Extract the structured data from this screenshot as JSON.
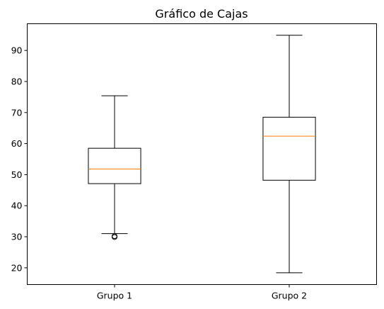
{
  "chart_data": {
    "type": "box",
    "title": "Gráfico de Cajas",
    "xlabel": "",
    "ylabel": "",
    "ylim": [
      14.6,
      98.6
    ],
    "yticks": [
      20,
      30,
      40,
      50,
      60,
      70,
      80,
      90
    ],
    "categories": [
      "Grupo 1",
      "Grupo 2"
    ],
    "boxes": [
      {
        "category": "Grupo 1",
        "whisker_low": 31.0,
        "q1": 47.1,
        "median": 51.8,
        "q3": 58.5,
        "whisker_high": 75.4,
        "outliers": [
          29.9,
          30.2
        ]
      },
      {
        "category": "Grupo 2",
        "whisker_low": 18.4,
        "q1": 48.2,
        "median": 62.4,
        "q3": 68.5,
        "whisker_high": 94.9,
        "outliers": []
      }
    ],
    "grid": false,
    "colors": {
      "box": "#000000",
      "median": "#ff7f0e",
      "outlier": "#000000"
    }
  }
}
